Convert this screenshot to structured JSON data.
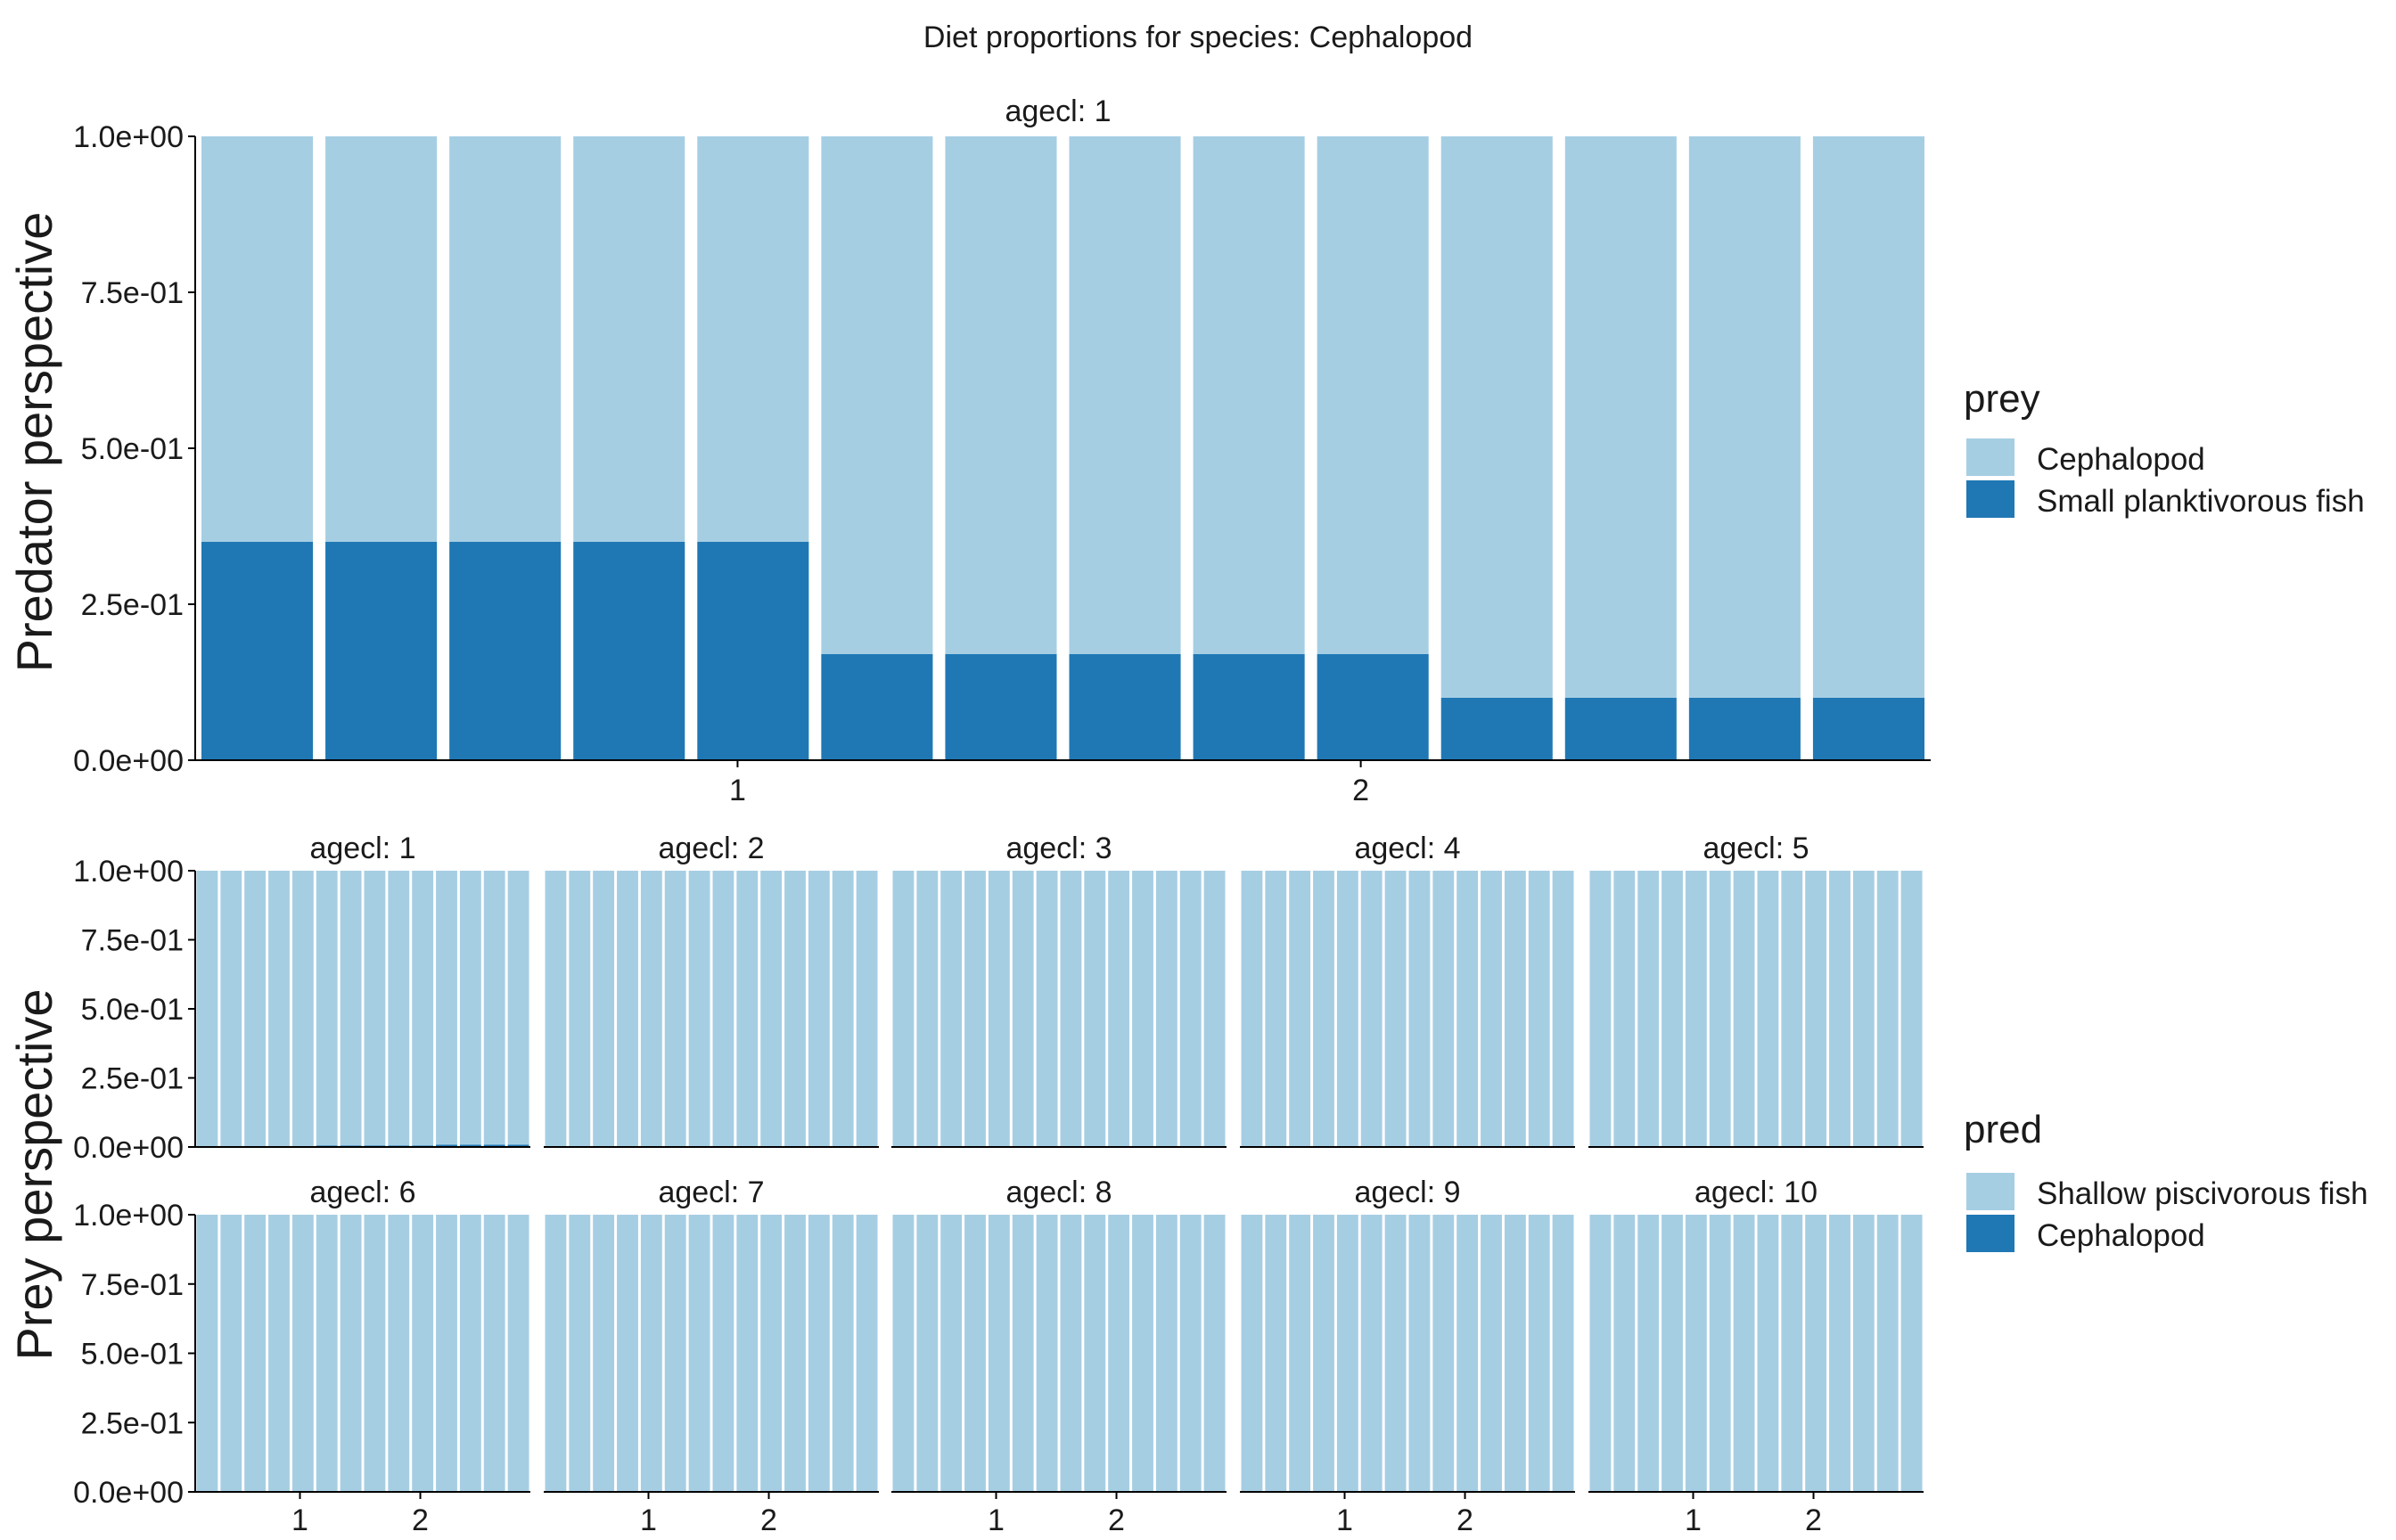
{
  "title": "Diet proportions for species: Cephalopod",
  "colors": {
    "light": "#a6cee3",
    "dark": "#1f78b4",
    "axis": "#000000",
    "text": "#1a1a1a"
  },
  "chart_data": [
    {
      "type": "bar",
      "stacked": true,
      "panel": "predator",
      "ylabel": "Predator perspective",
      "facet_label": "agecl: 1",
      "x_tick_labels": [
        "1",
        "2"
      ],
      "y_tick_labels": [
        "0.0e+00",
        "2.5e-01",
        "5.0e-01",
        "7.5e-01",
        "1.0e+00"
      ],
      "ylim": [
        0,
        1
      ],
      "grid": false,
      "legend_title": "prey",
      "legend_position": "right",
      "series": [
        {
          "name": "Small planktivorous fish",
          "color": "#1f78b4",
          "values": [
            0.35,
            0.35,
            0.35,
            0.35,
            0.35,
            0.17,
            0.17,
            0.17,
            0.17,
            0.17,
            0.1,
            0.1,
            0.1,
            0.1
          ]
        },
        {
          "name": "Cephalopod",
          "color": "#a6cee3",
          "values": [
            0.65,
            0.65,
            0.65,
            0.65,
            0.65,
            0.83,
            0.83,
            0.83,
            0.83,
            0.83,
            0.9,
            0.9,
            0.9,
            0.9
          ]
        }
      ],
      "legend_order": [
        "Cephalopod",
        "Small planktivorous fish"
      ]
    },
    {
      "type": "bar",
      "stacked": true,
      "panel": "prey",
      "ylabel": "Prey perspective",
      "x_tick_labels": [
        "1",
        "2"
      ],
      "y_tick_labels": [
        "0.0e+00",
        "2.5e-01",
        "5.0e-01",
        "7.5e-01",
        "1.0e+00"
      ],
      "ylim": [
        0,
        1
      ],
      "grid": false,
      "legend_title": "pred",
      "legend_position": "right",
      "legend_order": [
        "Shallow piscivorous fish",
        "Cephalopod"
      ],
      "bars_per_facet": 14,
      "facets": [
        {
          "label": "agecl: 1",
          "cephalopod_values": [
            0.003,
            0.003,
            0.003,
            0.003,
            0.003,
            0.005,
            0.005,
            0.005,
            0.005,
            0.005,
            0.008,
            0.008,
            0.008,
            0.008
          ]
        },
        {
          "label": "agecl: 2",
          "cephalopod_values": [
            0,
            0,
            0,
            0,
            0,
            0,
            0,
            0,
            0,
            0,
            0,
            0,
            0,
            0
          ]
        },
        {
          "label": "agecl: 3",
          "cephalopod_values": [
            0,
            0,
            0,
            0,
            0,
            0,
            0,
            0,
            0,
            0,
            0,
            0,
            0,
            0
          ]
        },
        {
          "label": "agecl: 4",
          "cephalopod_values": [
            0,
            0,
            0,
            0,
            0,
            0,
            0,
            0,
            0,
            0,
            0,
            0,
            0,
            0
          ]
        },
        {
          "label": "agecl: 5",
          "cephalopod_values": [
            0,
            0,
            0,
            0,
            0,
            0,
            0,
            0,
            0,
            0,
            0,
            0,
            0,
            0
          ]
        },
        {
          "label": "agecl: 6",
          "cephalopod_values": [
            0,
            0,
            0,
            0,
            0,
            0,
            0,
            0,
            0,
            0,
            0,
            0,
            0,
            0
          ]
        },
        {
          "label": "agecl: 7",
          "cephalopod_values": [
            0,
            0,
            0,
            0,
            0,
            0,
            0,
            0,
            0,
            0,
            0,
            0,
            0,
            0
          ]
        },
        {
          "label": "agecl: 8",
          "cephalopod_values": [
            0,
            0,
            0,
            0,
            0,
            0,
            0,
            0,
            0,
            0,
            0,
            0,
            0,
            0
          ]
        },
        {
          "label": "agecl: 9",
          "cephalopod_values": [
            0,
            0,
            0,
            0,
            0,
            0,
            0,
            0,
            0,
            0,
            0,
            0,
            0,
            0
          ]
        },
        {
          "label": "agecl: 10",
          "cephalopod_values": [
            0,
            0,
            0,
            0,
            0,
            0,
            0,
            0,
            0,
            0,
            0,
            0,
            0,
            0
          ]
        }
      ],
      "series_colors": {
        "Shallow piscivorous fish": "#a6cee3",
        "Cephalopod": "#1f78b4"
      }
    }
  ]
}
